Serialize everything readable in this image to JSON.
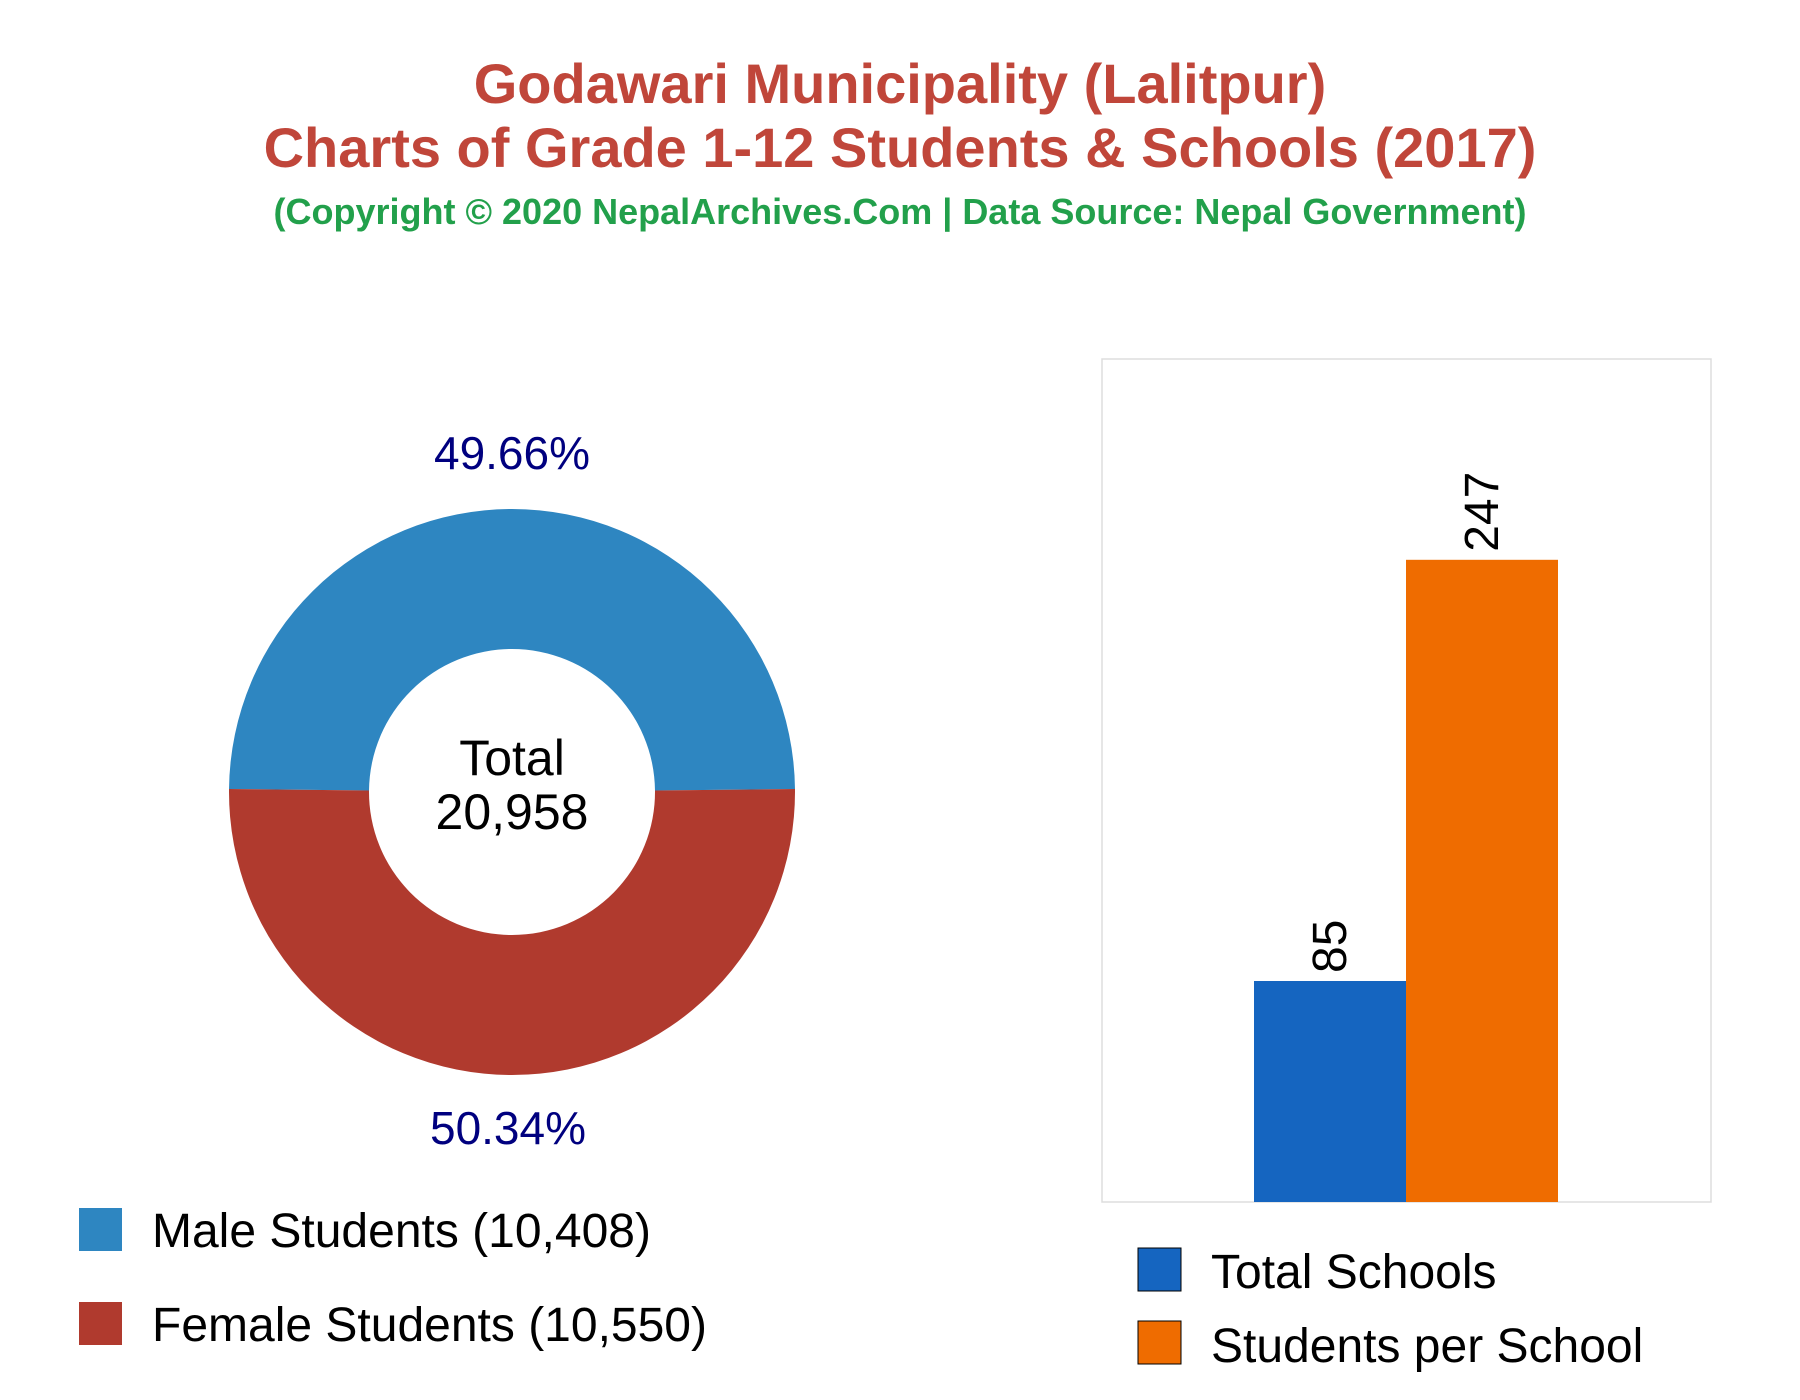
{
  "header": {
    "title_line1": "Godawari Municipality (Lalitpur)",
    "title_line2": "Charts of Grade 1-12 Students & Schools (2017)",
    "subtitle": "(Copyright © 2020 NepalArchives.Com | Data Source: Nepal Government)"
  },
  "colors": {
    "title": "#c0463a",
    "subtitle": "#22a04b",
    "percent_label": "#00007f",
    "male": "#2e86c1",
    "female": "#b03a2e",
    "total_schools": "#1565c0",
    "students_per_school": "#ef6c00"
  },
  "chart_data": [
    {
      "type": "pie",
      "variant": "donut",
      "center_label_line1": "Total",
      "center_label_line2": "20,958",
      "slices": [
        {
          "label": "Male Students (10,408)",
          "value": 10408,
          "percent_label": "49.66%",
          "color": "#2e86c1"
        },
        {
          "label": "Female Students (10,550)",
          "value": 10550,
          "percent_label": "50.34%",
          "color": "#b03a2e"
        }
      ],
      "legend_position": "bottom"
    },
    {
      "type": "bar",
      "categories": [
        "Total Schools",
        "Students per School"
      ],
      "values": [
        85,
        247
      ],
      "data_labels": [
        "85",
        "247"
      ],
      "colors": [
        "#1565c0",
        "#ef6c00"
      ],
      "legend_position": "bottom",
      "grid": false
    }
  ]
}
